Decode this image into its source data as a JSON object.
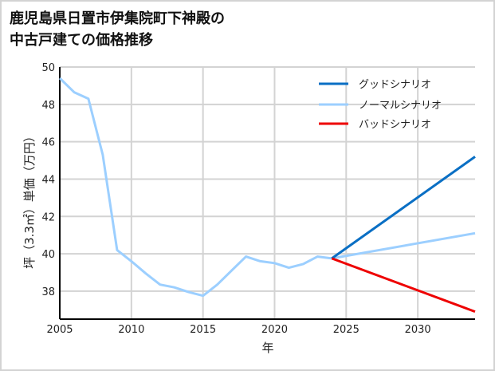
{
  "title": "鹿児島県日置市伊集院町下神殿の\n中古戸建ての価格推移",
  "colors": {
    "good": "#0a6fc4",
    "normal": "#9ccfff",
    "bad": "#ee0000",
    "grid": "#d3d3d3",
    "axis": "#000000",
    "frame": "#d3d3d3"
  },
  "chart_data": {
    "type": "line",
    "title": "鹿児島県日置市伊集院町下神殿の中古戸建ての価格推移",
    "xlabel": "年",
    "ylabel": "坪（3.3㎡）単価（万円）",
    "xlim": [
      2005,
      2034
    ],
    "ylim": [
      36.5,
      50
    ],
    "x_ticks": [
      2005,
      2010,
      2015,
      2020,
      2025,
      2030
    ],
    "y_ticks": [
      38,
      40,
      42,
      44,
      46,
      48,
      50
    ],
    "grid": true,
    "legend_position": "upper right",
    "series": [
      {
        "name": "ノーマルシナリオ",
        "segment": "historical",
        "x": [
          2005,
          2006,
          2007,
          2008,
          2009,
          2010,
          2011,
          2012,
          2013,
          2014,
          2015,
          2016,
          2017,
          2018,
          2019,
          2020,
          2021,
          2022,
          2023,
          2024
        ],
        "values": [
          49.4,
          48.65,
          48.3,
          45.3,
          40.2,
          39.6,
          38.95,
          38.35,
          38.2,
          37.95,
          37.75,
          38.35,
          39.1,
          39.85,
          39.6,
          39.5,
          39.25,
          39.45,
          39.85,
          39.75
        ]
      },
      {
        "name": "グッドシナリオ",
        "x": [
          2024,
          2034
        ],
        "values": [
          39.75,
          45.2
        ]
      },
      {
        "name": "ノーマルシナリオ",
        "x": [
          2024,
          2034
        ],
        "values": [
          39.75,
          41.1
        ]
      },
      {
        "name": "バッドシナリオ",
        "x": [
          2024,
          2034
        ],
        "values": [
          39.75,
          36.9
        ]
      }
    ]
  },
  "legend": [
    {
      "label": "グッドシナリオ",
      "key": "good"
    },
    {
      "label": "ノーマルシナリオ",
      "key": "normal"
    },
    {
      "label": "バッドシナリオ",
      "key": "bad"
    }
  ],
  "axis": {
    "xlabel": "年",
    "ylabel": "坪（3.3㎡）単価（万円）",
    "x_tick_labels": [
      "2005",
      "2010",
      "2015",
      "2020",
      "2025",
      "2030"
    ],
    "y_tick_labels": [
      "38",
      "40",
      "42",
      "44",
      "46",
      "48",
      "50"
    ]
  }
}
